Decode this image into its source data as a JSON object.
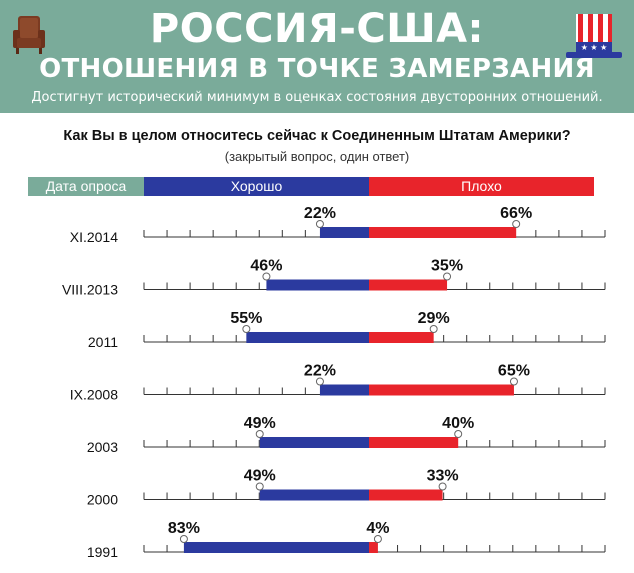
{
  "header": {
    "title_line1": "РОССИЯ-США:",
    "title_line2": "ОТНОШЕНИЯ В ТОЧКЕ ЗАМЕРЗАНИЯ",
    "subtitle": "Достигнут исторический минимум в оценках состояния двусторонних отношений."
  },
  "question": "Как Вы в целом относитесь сейчас к Соединенным Штатам Америки?",
  "question_note": "(закрытый вопрос, один ответ)",
  "legend": {
    "date_label": "Дата опроса",
    "good_label": "Хорошо",
    "bad_label": "Плохо"
  },
  "colors": {
    "header_bg": "#7aab9a",
    "good": "#2b3a9f",
    "bad": "#e8242b"
  },
  "chart_data": {
    "type": "bar",
    "orientation": "horizontal-diverging",
    "categories": [
      "XI.2014",
      "VIII.2013",
      "2011",
      "IX.2008",
      "2003",
      "2000",
      "1991"
    ],
    "series": [
      {
        "name": "Хорошо",
        "values": [
          22,
          46,
          55,
          22,
          49,
          49,
          83
        ],
        "labels": [
          "22%",
          "46%",
          "55%",
          "22%",
          "49%",
          "49%",
          "83%"
        ]
      },
      {
        "name": "Плохо",
        "values": [
          66,
          35,
          29,
          65,
          40,
          33,
          4
        ],
        "labels": [
          "66%",
          "35%",
          "29%",
          "65%",
          "40%",
          "33%",
          "4%"
        ]
      }
    ],
    "xlim": [
      0,
      90
    ],
    "unit": "%"
  }
}
